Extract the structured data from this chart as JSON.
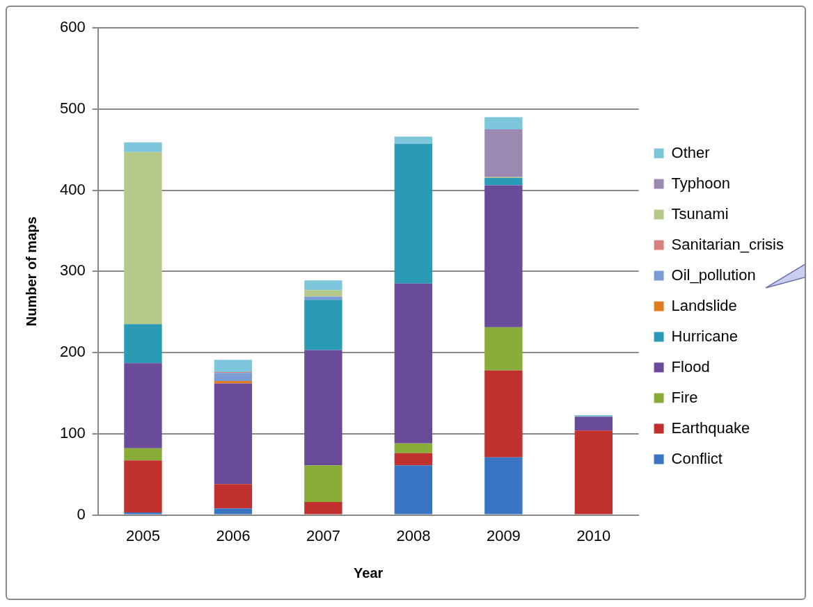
{
  "chart_data": {
    "type": "bar",
    "stacked": true,
    "xlabel": "Year",
    "ylabel": "Number of maps",
    "categories": [
      "2005",
      "2006",
      "2007",
      "2008",
      "2009",
      "2010"
    ],
    "ylim": [
      0,
      600
    ],
    "yticks": [
      0,
      100,
      200,
      300,
      400,
      500,
      600
    ],
    "grid": "y",
    "legend": "right",
    "series": [
      {
        "name": "Conflict",
        "color": "#3a75c4",
        "values": [
          3,
          8,
          0,
          61,
          71,
          0
        ]
      },
      {
        "name": "Earthquake",
        "color": "#c0302f",
        "values": [
          64,
          30,
          16,
          15,
          107,
          104
        ]
      },
      {
        "name": "Fire",
        "color": "#8aad3a",
        "values": [
          15,
          0,
          45,
          12,
          53,
          0
        ]
      },
      {
        "name": "Flood",
        "color": "#6a4b9a",
        "values": [
          105,
          124,
          142,
          197,
          175,
          17
        ]
      },
      {
        "name": "Hurricane",
        "color": "#2a9ab5",
        "values": [
          48,
          0,
          62,
          172,
          9,
          0
        ]
      },
      {
        "name": "Landslide",
        "color": "#e07b20",
        "values": [
          0,
          3,
          0,
          0,
          0,
          0
        ]
      },
      {
        "name": "Oil_pollution",
        "color": "#7b9cd4",
        "values": [
          0,
          10,
          4,
          0,
          0,
          0
        ]
      },
      {
        "name": "Sanitarian_crisis",
        "color": "#d9807e",
        "values": [
          0,
          1,
          0,
          0,
          0,
          0
        ]
      },
      {
        "name": "Tsunami",
        "color": "#b5c98a",
        "values": [
          212,
          0,
          8,
          0,
          1,
          0
        ]
      },
      {
        "name": "Typhoon",
        "color": "#9b88b3",
        "values": [
          0,
          0,
          0,
          0,
          59,
          0
        ]
      },
      {
        "name": "Other",
        "color": "#7dc6db",
        "values": [
          12,
          15,
          12,
          9,
          15,
          2
        ]
      }
    ]
  }
}
